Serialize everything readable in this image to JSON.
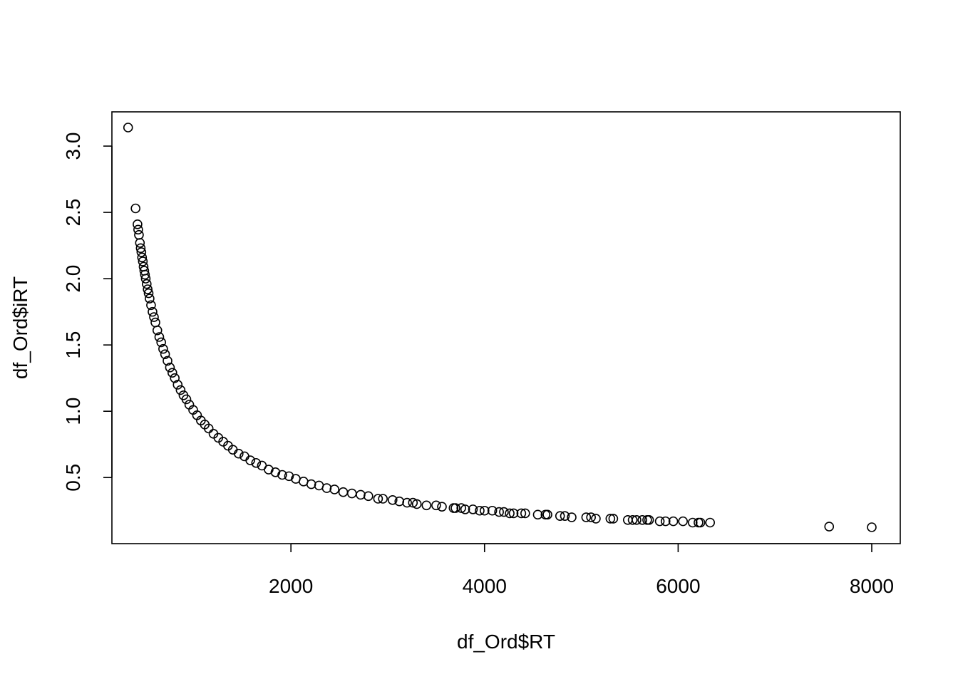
{
  "chart_data": {
    "type": "scatter",
    "title": "",
    "xlabel": "df_Ord$RT",
    "ylabel": "df_Ord$iRT",
    "xlim": [
      320,
      8000
    ],
    "ylim": [
      0.125,
      3.14
    ],
    "xticks": [
      2000,
      4000,
      6000,
      8000
    ],
    "yticks": [
      0.5,
      1.0,
      1.5,
      2.0,
      2.5,
      3.0
    ],
    "xtick_labels": [
      "2000",
      "4000",
      "6000",
      "8000"
    ],
    "ytick_labels": [
      "0.5",
      "1.0",
      "1.5",
      "2.0",
      "2.5",
      "3.0"
    ],
    "relationship": "y = 1000 / x",
    "x": [
      318,
      395,
      415,
      422,
      430,
      440,
      448,
      455,
      462,
      470,
      478,
      485,
      492,
      500,
      510,
      520,
      530,
      540,
      555,
      570,
      585,
      600,
      620,
      640,
      660,
      680,
      700,
      725,
      750,
      775,
      800,
      830,
      860,
      890,
      920,
      950,
      990,
      1030,
      1070,
      1110,
      1150,
      1200,
      1250,
      1300,
      1350,
      1400,
      1460,
      1520,
      1580,
      1640,
      1700,
      1770,
      1840,
      1910,
      1980,
      2050,
      2130,
      2210,
      2290,
      2370,
      2450,
      2540,
      2630,
      2720,
      2800,
      2900,
      2950,
      3050,
      3120,
      3200,
      3260,
      3300,
      3400,
      3500,
      3560,
      3680,
      3700,
      3760,
      3800,
      3880,
      3950,
      4000,
      4080,
      4150,
      4200,
      4260,
      4300,
      4380,
      4420,
      4550,
      4630,
      4650,
      4780,
      4830,
      4900,
      5050,
      5100,
      5150,
      5300,
      5330,
      5480,
      5530,
      5570,
      5630,
      5680,
      5700,
      5810,
      5870,
      5950,
      6050,
      6150,
      6210,
      6230,
      6330,
      7560,
      8000
    ],
    "y": [
      3.14,
      2.53,
      2.41,
      2.37,
      2.33,
      2.27,
      2.23,
      2.2,
      2.16,
      2.13,
      2.09,
      2.06,
      2.03,
      2.0,
      1.96,
      1.92,
      1.89,
      1.85,
      1.8,
      1.75,
      1.71,
      1.67,
      1.61,
      1.56,
      1.52,
      1.47,
      1.43,
      1.38,
      1.33,
      1.29,
      1.25,
      1.2,
      1.16,
      1.12,
      1.09,
      1.05,
      1.01,
      0.97,
      0.93,
      0.9,
      0.87,
      0.83,
      0.8,
      0.77,
      0.74,
      0.71,
      0.68,
      0.66,
      0.63,
      0.61,
      0.59,
      0.56,
      0.54,
      0.52,
      0.51,
      0.49,
      0.47,
      0.45,
      0.44,
      0.42,
      0.41,
      0.39,
      0.38,
      0.37,
      0.36,
      0.34,
      0.34,
      0.33,
      0.32,
      0.31,
      0.31,
      0.3,
      0.29,
      0.29,
      0.28,
      0.27,
      0.27,
      0.27,
      0.26,
      0.26,
      0.25,
      0.25,
      0.25,
      0.24,
      0.24,
      0.23,
      0.23,
      0.23,
      0.23,
      0.22,
      0.22,
      0.22,
      0.21,
      0.21,
      0.2,
      0.2,
      0.2,
      0.19,
      0.19,
      0.19,
      0.18,
      0.18,
      0.18,
      0.18,
      0.18,
      0.18,
      0.17,
      0.17,
      0.17,
      0.17,
      0.16,
      0.16,
      0.16,
      0.16,
      0.13,
      0.125
    ]
  }
}
